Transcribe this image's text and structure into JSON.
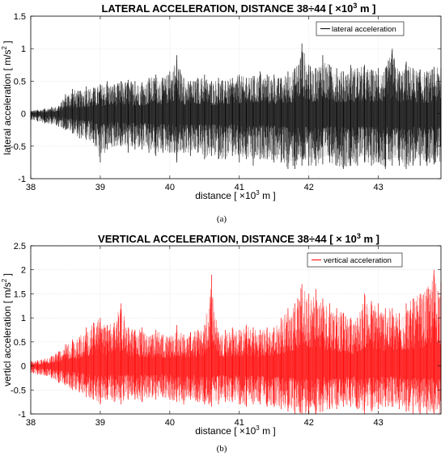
{
  "chart_data": [
    {
      "type": "line",
      "caption": "(a)",
      "title_main": "LATERAL ACCELERATION, DISTANCE 38÷44 [ ×10",
      "title_sup": "3",
      "title_end": " m ]",
      "xlabel_main": "distance  [ ×10",
      "xlabel_sup": "3",
      "xlabel_end": " m ]",
      "ylabel_main": "lateral acceleration  [ m/s",
      "ylabel_sup": "2",
      "ylabel_end": " ]",
      "xlim": [
        38,
        43.9
      ],
      "ylim": [
        -1,
        1.5
      ],
      "xticks": [
        38,
        39,
        40,
        41,
        42,
        43
      ],
      "xtick_labels": [
        "38",
        "39",
        "40",
        "41",
        "42",
        "43"
      ],
      "yticks": [
        -1,
        -0.5,
        0,
        0.5,
        1,
        1.5
      ],
      "ytick_labels": [
        "-1",
        "-0.5",
        "0",
        "0.5",
        "1",
        "1.5"
      ],
      "grid": true,
      "legend_position": "top-right",
      "series": [
        {
          "name": "lateral acceleration",
          "color": "#000000",
          "x": [
            38.0,
            38.1,
            38.2,
            38.3,
            38.4,
            38.5,
            38.6,
            38.7,
            38.8,
            38.9,
            39.0,
            39.1,
            39.2,
            39.3,
            39.4,
            39.5,
            39.6,
            39.7,
            39.8,
            39.9,
            40.0,
            40.1,
            40.2,
            40.3,
            40.4,
            40.5,
            40.6,
            40.7,
            40.8,
            40.9,
            41.0,
            41.1,
            41.2,
            41.3,
            41.4,
            41.5,
            41.6,
            41.7,
            41.8,
            41.9,
            42.0,
            42.1,
            42.2,
            42.3,
            42.4,
            42.5,
            42.6,
            42.7,
            42.8,
            42.9,
            43.0,
            43.1,
            43.2,
            43.3,
            43.4,
            43.5,
            43.6,
            43.7,
            43.8,
            43.9
          ],
          "upper": [
            0.05,
            0.06,
            0.08,
            0.1,
            0.12,
            0.3,
            0.38,
            0.35,
            0.42,
            0.4,
            0.45,
            0.5,
            0.45,
            0.5,
            0.52,
            0.5,
            0.48,
            0.55,
            0.6,
            0.55,
            0.65,
            0.9,
            0.55,
            0.5,
            0.55,
            0.6,
            0.5,
            0.55,
            0.5,
            0.55,
            0.6,
            0.55,
            0.58,
            0.65,
            0.6,
            0.6,
            0.55,
            0.65,
            0.7,
            1.08,
            0.75,
            0.7,
            0.9,
            0.75,
            0.7,
            0.65,
            0.75,
            0.7,
            0.75,
            0.68,
            0.7,
            0.7,
            1.0,
            0.65,
            0.8,
            0.7,
            0.68,
            0.65,
            0.72,
            0.7
          ],
          "lower": [
            -0.1,
            -0.12,
            -0.15,
            -0.16,
            -0.2,
            -0.25,
            -0.3,
            -0.38,
            -0.4,
            -0.45,
            -0.75,
            -0.55,
            -0.5,
            -0.5,
            -0.6,
            -0.55,
            -0.55,
            -0.6,
            -0.65,
            -0.6,
            -0.6,
            -0.75,
            -0.6,
            -0.65,
            -0.6,
            -0.7,
            -0.65,
            -0.7,
            -0.7,
            -0.65,
            -0.75,
            -0.7,
            -0.8,
            -0.7,
            -0.7,
            -0.75,
            -0.75,
            -0.85,
            -0.85,
            -0.8,
            -0.8,
            -0.8,
            -0.78,
            -0.75,
            -0.8,
            -0.85,
            -0.8,
            -0.8,
            -0.75,
            -0.8,
            -0.75,
            -0.85,
            -0.8,
            -0.8,
            -0.85,
            -0.8,
            -0.8,
            -0.8,
            -0.78,
            -0.75
          ]
        }
      ]
    },
    {
      "type": "line",
      "caption": "(b)",
      "title_main": "VERTICAL ACCELERATION, DISTANCE 38÷44 [ × 10",
      "title_sup": "3",
      "title_end": " m ]",
      "xlabel_main": "distance  [ ×10",
      "xlabel_sup": "3",
      "xlabel_end": " m ]",
      "ylabel_main": "verticl acceleration  [ m/s",
      "ylabel_sup": "2",
      "ylabel_end": " ]",
      "xlim": [
        38,
        43.9
      ],
      "ylim": [
        -1,
        2.5
      ],
      "xticks": [
        38,
        39,
        40,
        41,
        42,
        43
      ],
      "xtick_labels": [
        "38",
        "39",
        "40",
        "41",
        "42",
        "43"
      ],
      "yticks": [
        -1,
        -0.5,
        0,
        0.5,
        1,
        1.5,
        2,
        2.5
      ],
      "ytick_labels": [
        "-1",
        "-0.5",
        "0",
        "0.5",
        "1",
        "1.5",
        "2",
        "2.5"
      ],
      "grid": true,
      "legend_position": "top-right",
      "series": [
        {
          "name": "vertical acceleration",
          "color": "#ff0000",
          "x": [
            38.0,
            38.1,
            38.2,
            38.3,
            38.4,
            38.5,
            38.6,
            38.7,
            38.8,
            38.9,
            39.0,
            39.1,
            39.2,
            39.3,
            39.4,
            39.5,
            39.6,
            39.7,
            39.8,
            39.9,
            40.0,
            40.1,
            40.2,
            40.3,
            40.4,
            40.5,
            40.6,
            40.7,
            40.8,
            40.9,
            41.0,
            41.1,
            41.2,
            41.3,
            41.4,
            41.5,
            41.6,
            41.7,
            41.8,
            41.9,
            42.0,
            42.1,
            42.2,
            42.3,
            42.4,
            42.5,
            42.6,
            42.7,
            42.8,
            42.9,
            43.0,
            43.1,
            43.2,
            43.3,
            43.4,
            43.5,
            43.6,
            43.7,
            43.8,
            43.9
          ],
          "upper": [
            0.1,
            0.12,
            0.15,
            0.2,
            0.3,
            0.45,
            0.55,
            0.6,
            0.8,
            0.9,
            1.0,
            0.85,
            0.9,
            1.3,
            0.8,
            0.75,
            0.8,
            0.6,
            0.75,
            0.65,
            0.6,
            0.85,
            0.65,
            0.7,
            0.75,
            0.85,
            1.9,
            0.7,
            0.75,
            0.8,
            0.75,
            0.85,
            0.8,
            0.75,
            0.8,
            0.8,
            1.0,
            1.2,
            1.3,
            1.7,
            1.5,
            1.6,
            1.4,
            1.3,
            1.2,
            1.1,
            1.0,
            1.0,
            1.5,
            1.35,
            1.3,
            1.2,
            1.2,
            1.1,
            1.3,
            1.4,
            1.5,
            1.6,
            2.0,
            1.75
          ],
          "lower": [
            -0.15,
            -0.18,
            -0.2,
            -0.25,
            -0.35,
            -0.4,
            -0.5,
            -0.55,
            -0.65,
            -0.7,
            -0.8,
            -0.7,
            -0.75,
            -0.8,
            -0.7,
            -0.7,
            -0.75,
            -0.65,
            -0.7,
            -0.65,
            -0.7,
            -0.75,
            -0.8,
            -0.7,
            -0.75,
            -0.8,
            -0.85,
            -0.8,
            -0.75,
            -0.75,
            -0.8,
            -0.85,
            -0.8,
            -0.8,
            -0.85,
            -0.85,
            -0.9,
            -0.95,
            -1.0,
            -1.0,
            -1.0,
            -1.0,
            -0.95,
            -0.9,
            -0.9,
            -0.85,
            -0.85,
            -0.9,
            -1.0,
            -0.95,
            -0.9,
            -0.85,
            -0.85,
            -0.9,
            -0.95,
            -1.0,
            -1.0,
            -1.0,
            -1.0,
            -1.0
          ]
        }
      ]
    }
  ]
}
